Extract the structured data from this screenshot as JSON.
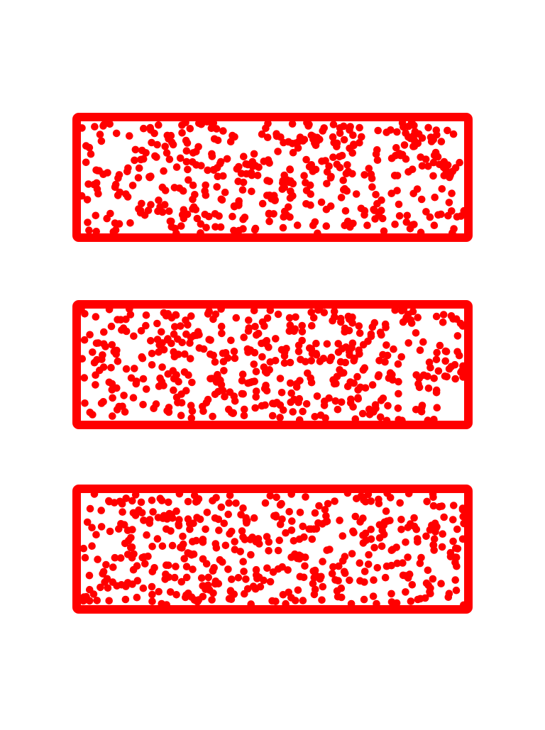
{
  "colors": {
    "background": "#ffffff",
    "shape": "#ff0000"
  },
  "panels": [
    {
      "shape": "rectangle-outline",
      "fill": "random-dots",
      "dot_color": "#ff0000"
    },
    {
      "shape": "rectangle-outline",
      "fill": "random-dots",
      "dot_color": "#ff0000"
    },
    {
      "shape": "rectangle-outline",
      "fill": "random-dots",
      "dot_color": "#ff0000"
    }
  ]
}
